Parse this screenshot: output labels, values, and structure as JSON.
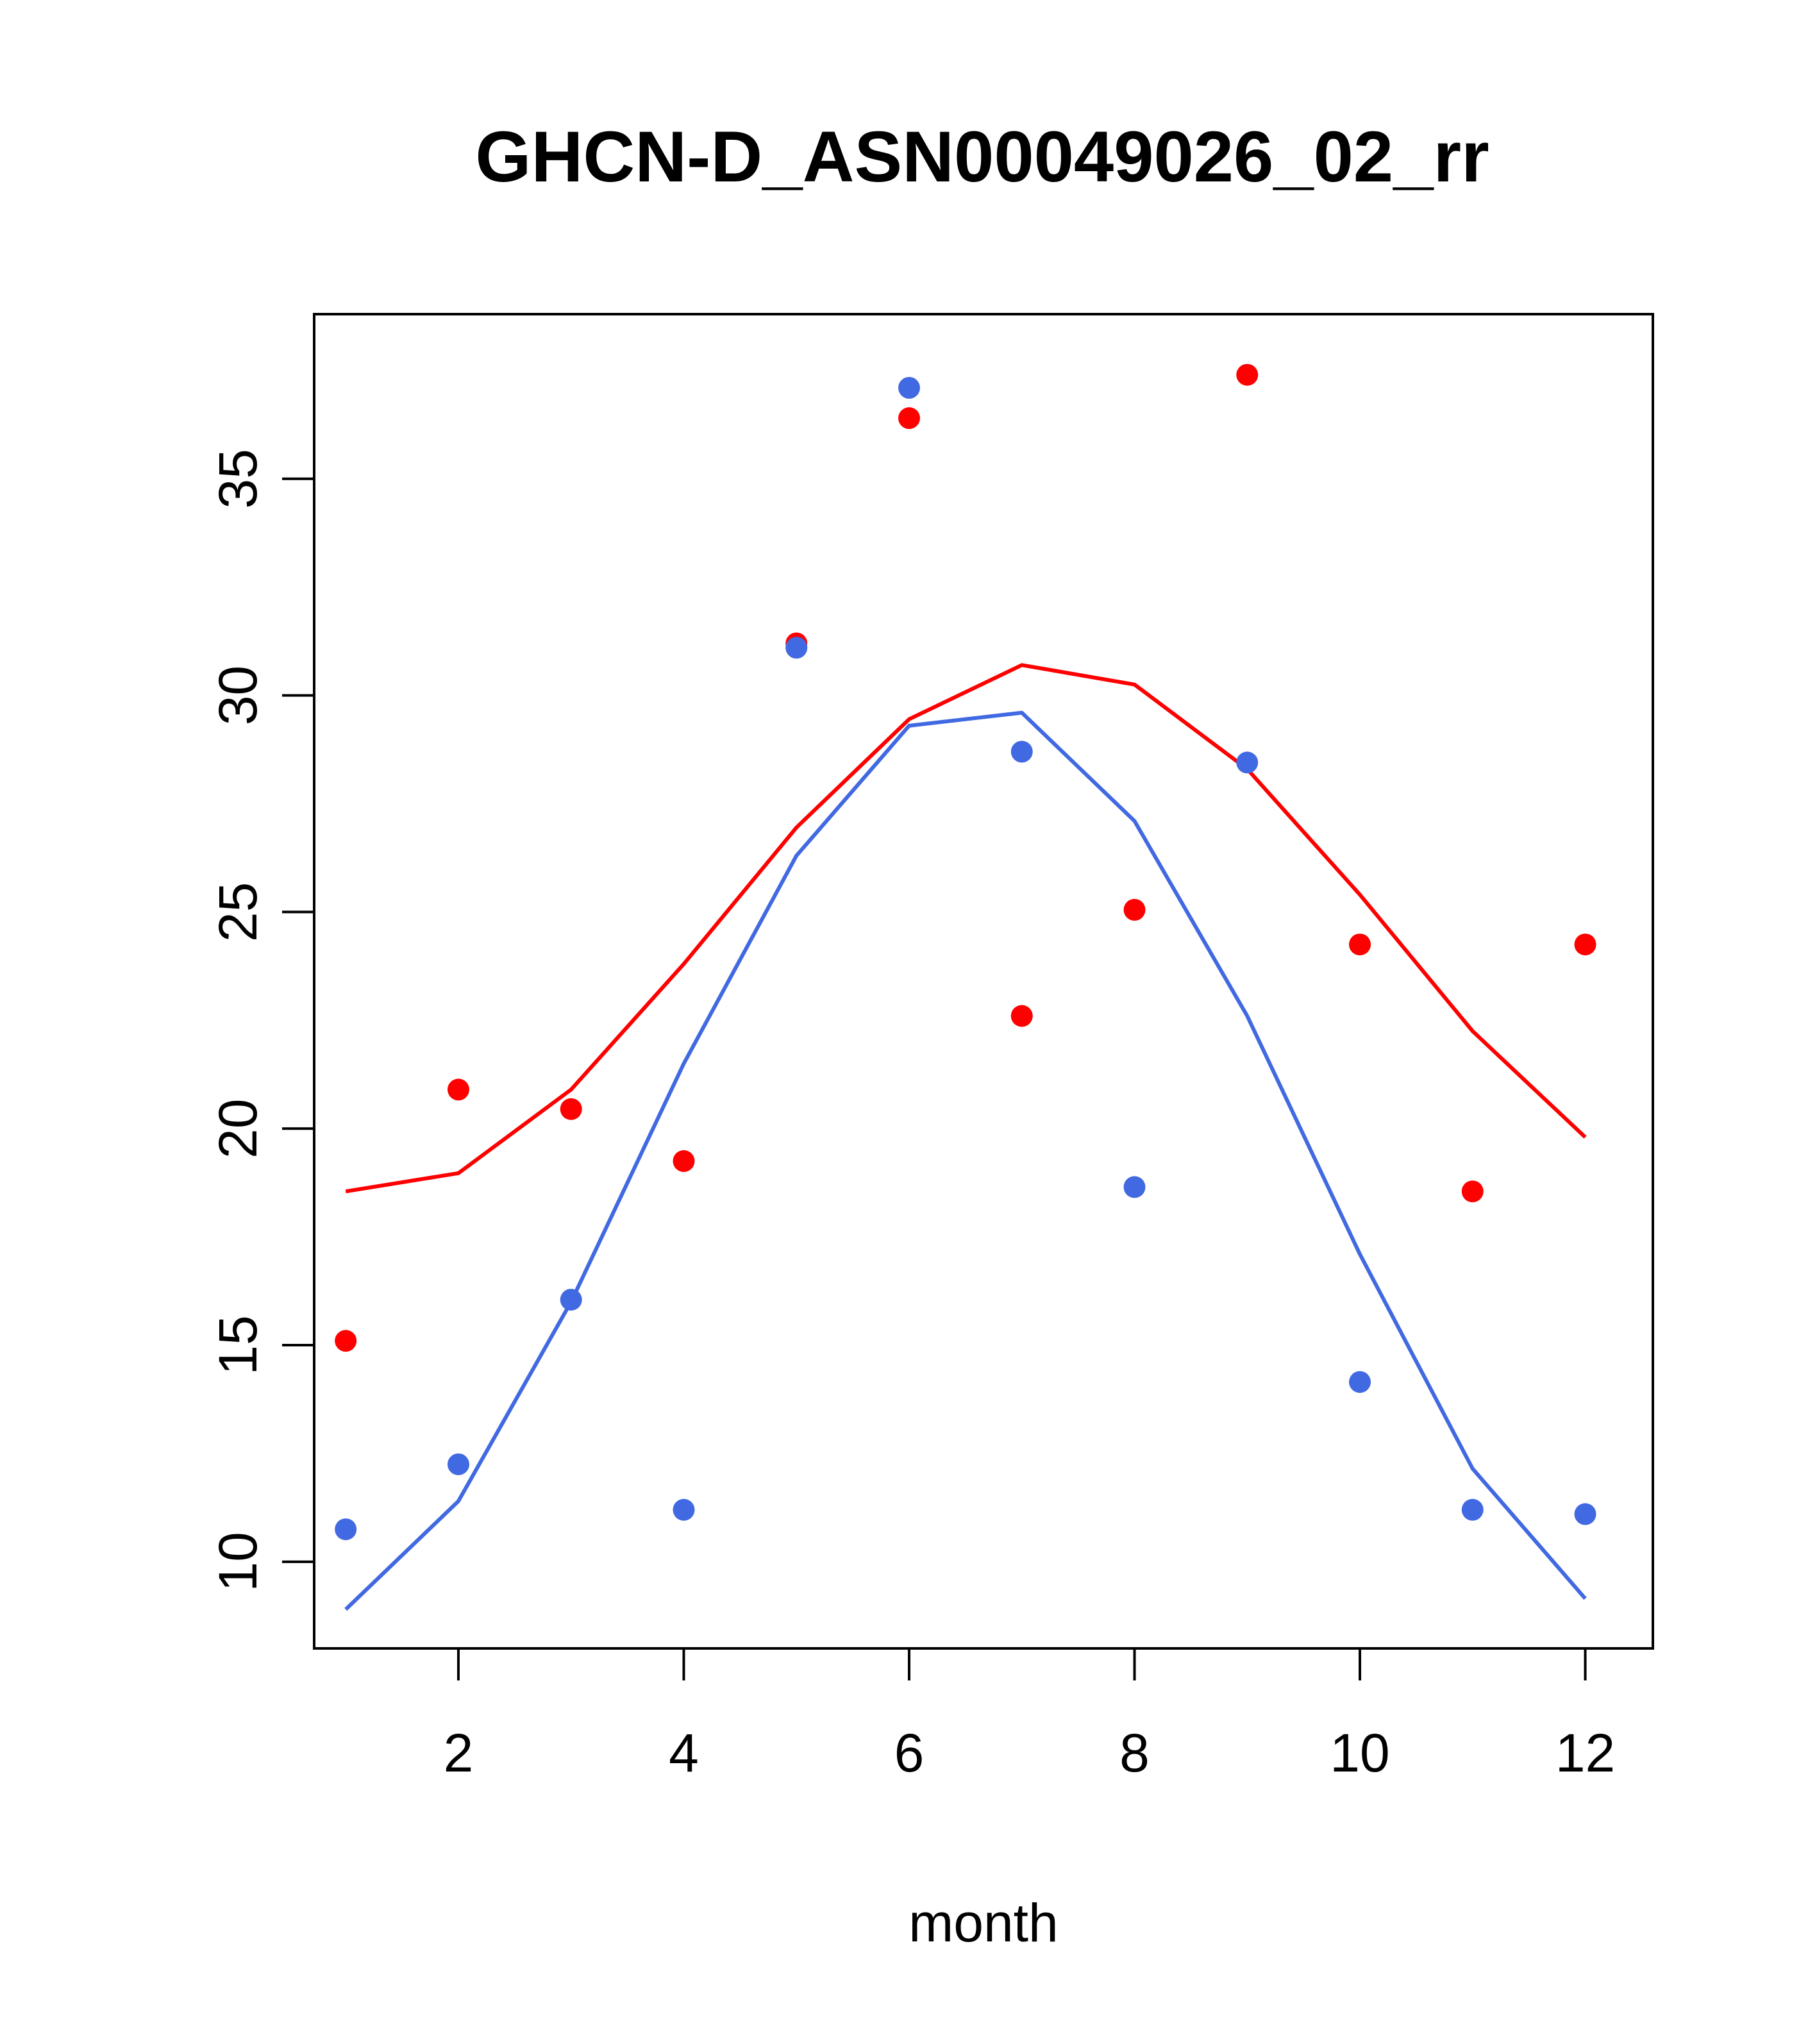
{
  "chart_data": {
    "type": "line+scatter",
    "title": "GHCN-D_ASN00049026_02_rr",
    "xlabel": "month",
    "ylabel": "",
    "xlim": [
      0.72,
      12.6
    ],
    "ylim": [
      8.0,
      38.8
    ],
    "x_ticks": [
      2,
      4,
      6,
      8,
      10,
      12
    ],
    "y_ticks": [
      10,
      15,
      20,
      25,
      30,
      35
    ],
    "grid": false,
    "legend": "none",
    "x": [
      1,
      2,
      3,
      4,
      5,
      6,
      7,
      8,
      9,
      10,
      11,
      12
    ],
    "series": [
      {
        "color": "#ff0000",
        "line": [
          18.55,
          18.97,
          20.9,
          23.8,
          26.95,
          29.45,
          30.7,
          30.25,
          28.3,
          25.4,
          22.25,
          19.8
        ],
        "points": [
          15.1,
          20.9,
          20.45,
          19.25,
          31.2,
          36.4,
          22.6,
          25.05,
          37.4,
          24.25,
          18.55,
          24.25
        ]
      },
      {
        "color": "#4169e1",
        "line": [
          8.9,
          11.4,
          16.0,
          21.5,
          26.3,
          29.3,
          29.6,
          27.1,
          22.6,
          17.1,
          12.15,
          9.15
        ],
        "points": [
          10.75,
          12.25,
          16.05,
          11.2,
          31.1,
          37.1,
          28.7,
          18.65,
          28.45,
          14.15,
          11.2,
          11.1
        ]
      }
    ]
  }
}
